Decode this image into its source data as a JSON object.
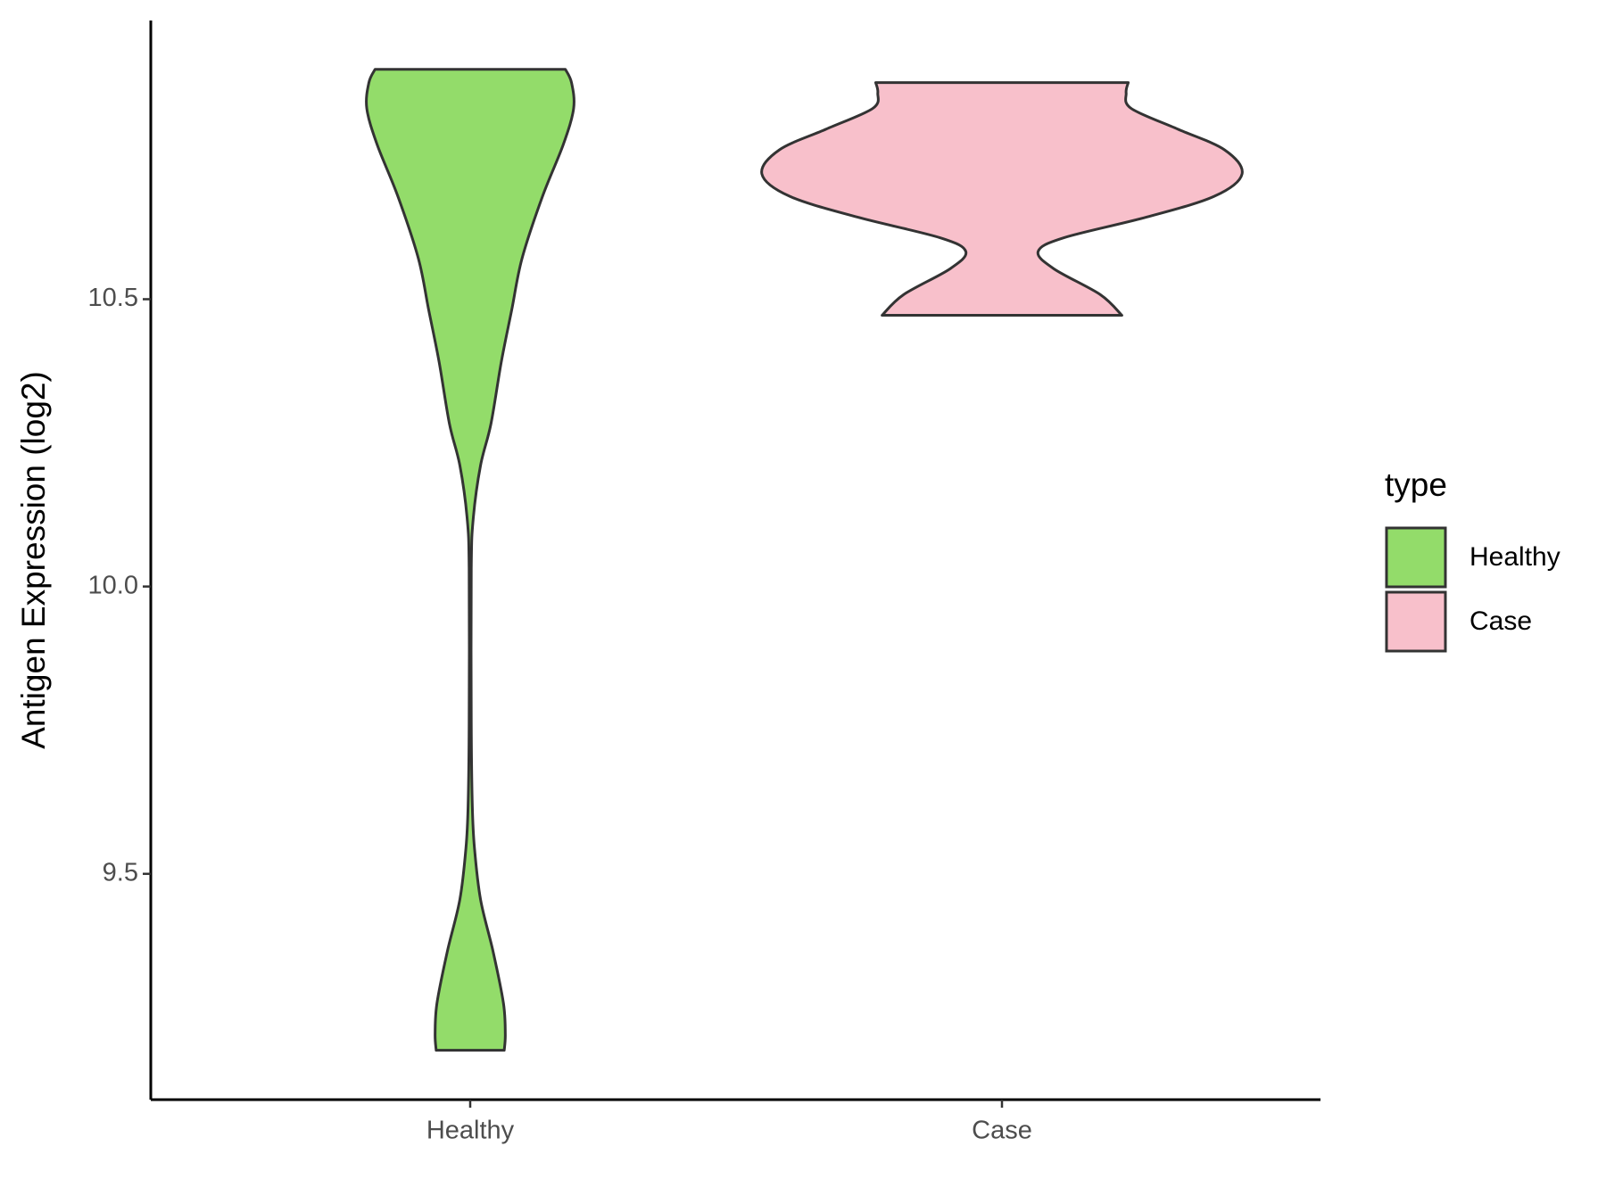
{
  "chart_data": {
    "type": "violin",
    "y_label": "Antigen Expression (log2)",
    "legend_title": "type",
    "legend": "right",
    "categories": [
      "Healthy",
      "Case"
    ],
    "ylim": [
      9.107,
      10.985
    ],
    "yticks": [
      9.5,
      {
        "value": 10,
        "label": "10.0"
      },
      10.5
    ],
    "series": [
      {
        "name": "Healthy",
        "color": "#93dc6a",
        "profile": {
          "y": [
            10.9,
            10.877,
            10.832,
            10.769,
            10.679,
            10.571,
            10.481,
            10.391,
            10.283,
            10.211,
            10.121,
            10.031,
            9.761,
            9.617,
            9.545,
            9.455,
            9.365,
            9.275,
            9.221,
            9.193
          ],
          "width": [
            0.358,
            0.381,
            0.389,
            0.35,
            0.272,
            0.195,
            0.156,
            0.117,
            0.078,
            0.039,
            0.012,
            0.004,
            0.004,
            0.008,
            0.016,
            0.039,
            0.086,
            0.125,
            0.132,
            0.128
          ]
        }
      },
      {
        "name": "Case",
        "color": "#f8c0cb",
        "profile": {
          "y": [
            10.877,
            10.859,
            10.832,
            10.796,
            10.76,
            10.718,
            10.679,
            10.643,
            10.607,
            10.583,
            10.553,
            10.508,
            10.472
          ],
          "width": [
            0.475,
            0.467,
            0.486,
            0.661,
            0.837,
            0.903,
            0.798,
            0.545,
            0.233,
            0.136,
            0.195,
            0.37,
            0.451
          ]
        }
      }
    ]
  }
}
